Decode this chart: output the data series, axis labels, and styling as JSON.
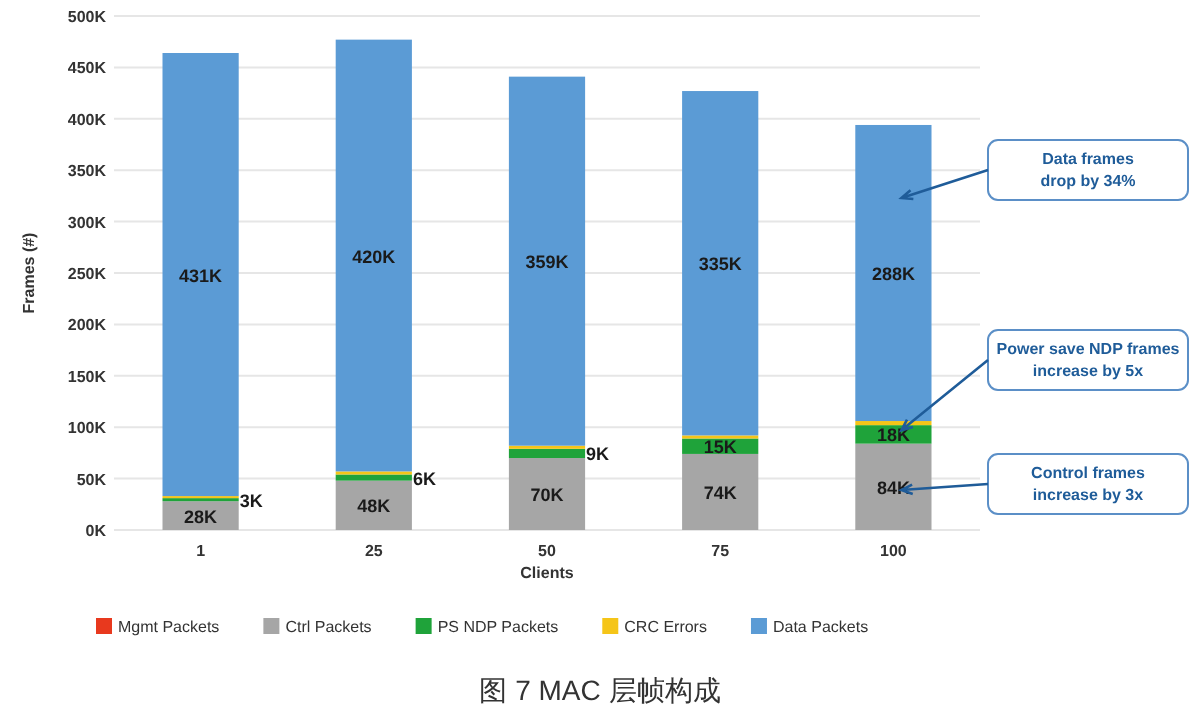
{
  "chart_data": {
    "type": "bar",
    "stacked": true,
    "title": "图 7 MAC 层帧构成",
    "xlabel": "Clients",
    "ylabel": "Frames (#)",
    "categories": [
      "1",
      "25",
      "50",
      "75",
      "100"
    ],
    "series": [
      {
        "name": "Mgmt Packets",
        "color": "#e8391e",
        "values": [
          0,
          0,
          0,
          0,
          0
        ]
      },
      {
        "name": "Ctrl Packets",
        "color": "#a6a6a6",
        "values": [
          28000,
          48000,
          70000,
          74000,
          84000
        ],
        "value_labels": [
          "28K",
          "48K",
          "70K",
          "74K",
          "84K"
        ]
      },
      {
        "name": "PS NDP Packets",
        "color": "#1fa33a",
        "values": [
          3000,
          6000,
          9000,
          15000,
          18000
        ],
        "value_labels": [
          "3K",
          "6K",
          "9K",
          "15K",
          "18K"
        ]
      },
      {
        "name": "CRC Errors",
        "color": "#f5c518",
        "values": [
          2000,
          3000,
          3000,
          3000,
          4000
        ]
      },
      {
        "name": "Data Packets",
        "color": "#5b9bd5",
        "values": [
          431000,
          420000,
          359000,
          335000,
          288000
        ],
        "value_labels": [
          "431K",
          "420K",
          "359K",
          "335K",
          "288K"
        ]
      }
    ],
    "ylim": [
      0,
      500000
    ],
    "yticks": [
      {
        "value": 0,
        "label": "0K"
      },
      {
        "value": 50000,
        "label": "50K"
      },
      {
        "value": 100000,
        "label": "100K"
      },
      {
        "value": 150000,
        "label": "150K"
      },
      {
        "value": 200000,
        "label": "200K"
      },
      {
        "value": 250000,
        "label": "250K"
      },
      {
        "value": 300000,
        "label": "300K"
      },
      {
        "value": 350000,
        "label": "350K"
      },
      {
        "value": 400000,
        "label": "400K"
      },
      {
        "value": 450000,
        "label": "450K"
      },
      {
        "value": 500000,
        "label": "500K"
      }
    ],
    "grid": "y",
    "legend": "bottom",
    "annotations": [
      "Data frames drop by 34%",
      {
        "text": "Power save NDP frames increase by 5x",
        "x": "100",
        "y": 97000
      },
      "Control frames increase by 3x"
    ]
  }
}
